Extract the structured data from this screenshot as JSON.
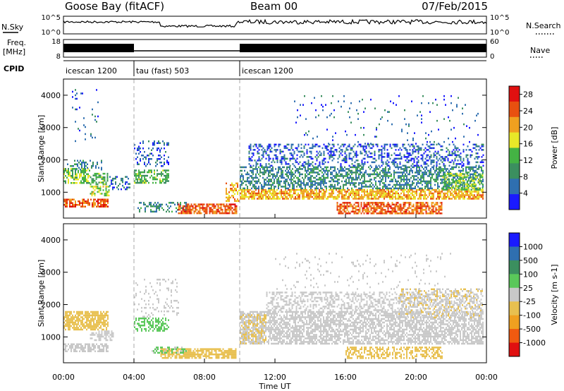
{
  "header": {
    "station": "Goose Bay (fitACF)",
    "beam": "Beam 00",
    "date": "07/Feb/2015"
  },
  "strips": {
    "nsky": {
      "label": "N.Sky",
      "tick_top": "10^5",
      "tick_bottom": "10^0"
    },
    "nsearch": {
      "label": "N.Search"
    },
    "freq": {
      "label_line1": "Freq.",
      "label_line2": "[MHz]",
      "tick_top": "18",
      "tick_bottom": "8"
    },
    "nave": {
      "label": "Nave",
      "tick_top": "60",
      "tick_bottom": "0"
    },
    "cpid": {
      "label": "CPID",
      "segments": [
        {
          "start": 0,
          "end": 4,
          "name": "icescan 1200"
        },
        {
          "start": 4,
          "end": 10,
          "name": "tau (fast) 503"
        },
        {
          "start": 10,
          "end": 24,
          "name": "icescan 1200"
        }
      ]
    }
  },
  "x_axis": {
    "label": "Time UT",
    "ticks": [
      "00:00",
      "04:00",
      "08:00",
      "12:00",
      "16:00",
      "20:00",
      "00:00"
    ]
  },
  "chart_data": [
    {
      "type": "heatmap",
      "title": "",
      "xlabel": "Time UT",
      "ylabel": "Slant Range [km]",
      "xlim": [
        0,
        24
      ],
      "ylim": [
        200,
        4500
      ],
      "yticks": [
        "1000",
        "2000",
        "3000",
        "4000"
      ],
      "colorbar": {
        "label": "Power [dB]",
        "ticks": [
          "4",
          "8",
          "12",
          "16",
          "20",
          "24",
          "28"
        ],
        "range": [
          0,
          30
        ],
        "colors": [
          "#1a1aff",
          "#2f6fb0",
          "#3b8f5f",
          "#44b344",
          "#e8e828",
          "#f0a020",
          "#e85010",
          "#e01010"
        ]
      },
      "regions": [
        {
          "t0": 0.0,
          "t1": 1.5,
          "r0": 1300,
          "r1": 1750,
          "v": 14,
          "d": 0.65
        },
        {
          "t0": 1.5,
          "t1": 2.5,
          "r0": 1250,
          "r1": 1600,
          "v": 12,
          "d": 0.55
        },
        {
          "t0": 0.2,
          "t1": 2.2,
          "r0": 1700,
          "r1": 2000,
          "v": 8,
          "d": 0.35
        },
        {
          "t0": 0.0,
          "t1": 2.5,
          "r0": 550,
          "r1": 800,
          "v": 24,
          "d": 0.7
        },
        {
          "t0": 0.4,
          "t1": 2.0,
          "r0": 2500,
          "r1": 4300,
          "v": 5,
          "d": 0.05
        },
        {
          "t0": 1.5,
          "t1": 2.6,
          "r0": 900,
          "r1": 1200,
          "v": 16,
          "d": 0.5
        },
        {
          "t0": 2.6,
          "t1": 3.8,
          "r0": 1100,
          "r1": 1500,
          "v": 6,
          "d": 0.3
        },
        {
          "t0": 4.0,
          "t1": 6.0,
          "r0": 1300,
          "r1": 1700,
          "v": 12,
          "d": 0.6
        },
        {
          "t0": 4.0,
          "t1": 6.0,
          "r0": 1800,
          "r1": 2600,
          "v": 5,
          "d": 0.25
        },
        {
          "t0": 4.2,
          "t1": 7.0,
          "r0": 400,
          "r1": 700,
          "v": 8,
          "d": 0.35
        },
        {
          "t0": 6.5,
          "t1": 9.8,
          "r0": 350,
          "r1": 650,
          "v": 24,
          "d": 0.8
        },
        {
          "t0": 9.2,
          "t1": 10.0,
          "r0": 700,
          "r1": 1300,
          "v": 20,
          "d": 0.45
        },
        {
          "t0": 10.0,
          "t1": 23.8,
          "r0": 800,
          "r1": 1100,
          "v": 20,
          "d": 0.75
        },
        {
          "t0": 10.0,
          "t1": 23.8,
          "r0": 1100,
          "r1": 1800,
          "v": 8,
          "d": 0.55
        },
        {
          "t0": 10.5,
          "t1": 23.8,
          "r0": 1800,
          "r1": 2500,
          "v": 5,
          "d": 0.35
        },
        {
          "t0": 13.0,
          "t1": 23.5,
          "r0": 2500,
          "r1": 4000,
          "v": 5,
          "d": 0.04
        },
        {
          "t0": 15.5,
          "t1": 21.5,
          "r0": 350,
          "r1": 700,
          "v": 24,
          "d": 0.7
        },
        {
          "t0": 21.5,
          "t1": 23.8,
          "r0": 1100,
          "r1": 1600,
          "v": 14,
          "d": 0.5
        }
      ]
    },
    {
      "type": "heatmap",
      "title": "",
      "xlabel": "Time UT",
      "ylabel": "Slant Range [km]",
      "xlim": [
        0,
        24
      ],
      "ylim": [
        200,
        4500
      ],
      "yticks": [
        "1000",
        "2000",
        "3000",
        "4000"
      ],
      "colorbar": {
        "label": "Velocity [m s-1]",
        "ticks": [
          "1000",
          "500",
          "100",
          "25",
          "-25",
          "-100",
          "-500",
          "-1000"
        ],
        "range": [
          -1200,
          1200
        ],
        "colors": [
          "#e01010",
          "#f05a10",
          "#f0a020",
          "#e8c050",
          "#c8c8c8",
          "#5ac85a",
          "#3b8f5f",
          "#2f6fb0",
          "#1a1aff"
        ]
      },
      "regions": [
        {
          "t0": 0.0,
          "t1": 2.5,
          "r0": 1200,
          "r1": 1800,
          "v": -250,
          "d": 0.7
        },
        {
          "t0": 0.0,
          "t1": 2.5,
          "r0": 550,
          "r1": 800,
          "v": 0,
          "d": 0.6
        },
        {
          "t0": 1.5,
          "t1": 2.8,
          "r0": 900,
          "r1": 1200,
          "v": -80,
          "d": 0.5
        },
        {
          "t0": 4.0,
          "t1": 6.0,
          "r0": 1200,
          "r1": 1600,
          "v": 250,
          "d": 0.55
        },
        {
          "t0": 4.0,
          "t1": 6.5,
          "r0": 1600,
          "r1": 2800,
          "v": 0,
          "d": 0.15
        },
        {
          "t0": 5.5,
          "t1": 9.8,
          "r0": 350,
          "r1": 650,
          "v": -200,
          "d": 0.75
        },
        {
          "t0": 5.0,
          "t1": 7.0,
          "r0": 500,
          "r1": 700,
          "v": 150,
          "d": 0.4
        },
        {
          "t0": 10.0,
          "t1": 23.8,
          "r0": 800,
          "r1": 1800,
          "v": 0,
          "d": 0.65
        },
        {
          "t0": 11.5,
          "t1": 23.8,
          "r0": 1800,
          "r1": 2400,
          "v": 0,
          "d": 0.4
        },
        {
          "t0": 10.0,
          "t1": 11.5,
          "r0": 800,
          "r1": 1700,
          "v": -150,
          "d": 0.5
        },
        {
          "t0": 16.0,
          "t1": 21.5,
          "r0": 350,
          "r1": 700,
          "v": -300,
          "d": 0.55
        },
        {
          "t0": 19.0,
          "t1": 23.8,
          "r0": 1600,
          "r1": 2500,
          "v": -120,
          "d": 0.35
        },
        {
          "t0": 12.0,
          "t1": 22.0,
          "r0": 2500,
          "r1": 3600,
          "v": 0,
          "d": 0.05
        }
      ]
    }
  ]
}
